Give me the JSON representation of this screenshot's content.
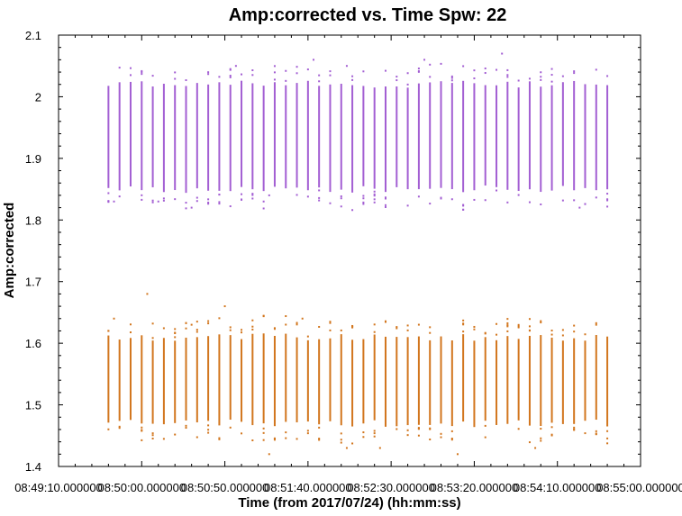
{
  "chart_data": {
    "type": "scatter",
    "title": "Amp:corrected vs. Time Spw: 22",
    "xlabel": "Time (from 2017/07/24) (hh:mm:ss)",
    "ylabel": "Amp:corrected",
    "x_unit": "seconds since 08:49:10",
    "xlim": [
      0,
      350
    ],
    "ylim": [
      1.4,
      2.1
    ],
    "x_tick_values": [
      0,
      50,
      100,
      150,
      200,
      250,
      300,
      350
    ],
    "x_tick_labels": [
      "08:49:10.000000",
      "08:50:00.000000",
      "08:50:50.000000",
      "08:51:40.000000",
      "08:52:30.000000",
      "08:53:20.000000",
      "08:54:10.000000",
      "08:55:00.000000"
    ],
    "y_ticks": [
      1.4,
      1.5,
      1.6,
      1.7,
      1.8,
      1.9,
      2.0,
      2.1
    ],
    "y_tick_labels": [
      "1.4",
      "1.5",
      "1.6",
      "1.7",
      "1.8",
      "1.9",
      "2",
      "2.1"
    ],
    "grid": false,
    "legend": "none",
    "x_range_observed": [
      "08:49:40",
      "08:54:40"
    ],
    "series": [
      {
        "color": "#a35fd3",
        "column_count": 46,
        "core_range": [
          1.85,
          2.02
        ],
        "outliers": [
          1.83,
          1.82,
          1.84,
          2.05,
          2.06,
          2.07,
          1.82,
          1.83,
          2.05,
          2.06
        ]
      },
      {
        "color": "#d2761e",
        "column_count": 46,
        "core_range": [
          1.47,
          1.61
        ],
        "outliers": [
          1.68,
          1.66,
          1.64,
          1.43,
          1.42,
          1.43,
          1.64,
          1.63,
          1.42,
          1.43
        ]
      }
    ]
  }
}
